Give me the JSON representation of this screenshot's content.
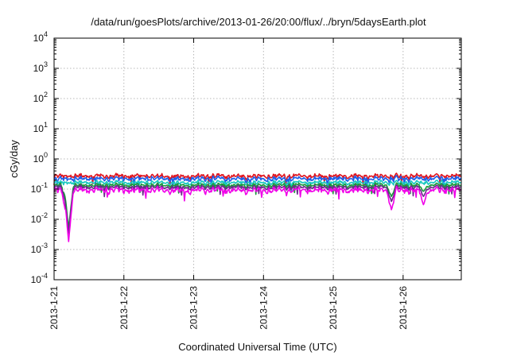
{
  "chart_data": {
    "type": "line",
    "title": "/data/run/goesPlots/archive/2013-01-26/20:00/flux/../bryn/5daysEarth.plot",
    "xlabel": "Coordinated Universal Time (UTC)",
    "ylabel": "cGy/day",
    "y_scale": "log",
    "ylim": [
      0.0001,
      10000
    ],
    "y_tick_labels": [
      {
        "base": "10",
        "exp": "-4"
      },
      {
        "base": "10",
        "exp": "-3"
      },
      {
        "base": "10",
        "exp": "-2"
      },
      {
        "base": "10",
        "exp": "-1"
      },
      {
        "base": "10",
        "exp": "0"
      },
      {
        "base": "10",
        "exp": "1"
      },
      {
        "base": "10",
        "exp": "2"
      },
      {
        "base": "10",
        "exp": "3"
      },
      {
        "base": "10",
        "exp": "4"
      }
    ],
    "xlim": [
      "2013-01-21",
      "2013-01-26T20:00"
    ],
    "x_tick_labels": [
      "2013-1-21",
      "2013-1-22",
      "2013-1-23",
      "2013-1-24",
      "2013-1-25",
      "2013-1-26"
    ],
    "grid": true,
    "series": [
      {
        "color": "#e0141e",
        "level": 0.27,
        "spread": 0.22
      },
      {
        "color": "#1f5fe8",
        "level": 0.22,
        "spread": 0.24
      },
      {
        "color": "#18c8c0",
        "level": 0.165,
        "spread": 0.2
      },
      {
        "color": "#1a9a3a",
        "level": 0.135,
        "spread": 0.2
      },
      {
        "color": "#6a2a8a",
        "level": 0.115,
        "spread": 0.2
      },
      {
        "color": "#f000e8",
        "level": 0.092,
        "spread": 0.3
      }
    ],
    "notable_dips": [
      {
        "x": "2013-01-21T05:00",
        "y": 0.0018
      },
      {
        "x": "2013-01-21T04:00",
        "y": 0.02
      },
      {
        "x": "2013-01-25T20:00",
        "y": 0.02
      },
      {
        "x": "2013-01-26T07:00",
        "y": 0.03
      }
    ]
  }
}
